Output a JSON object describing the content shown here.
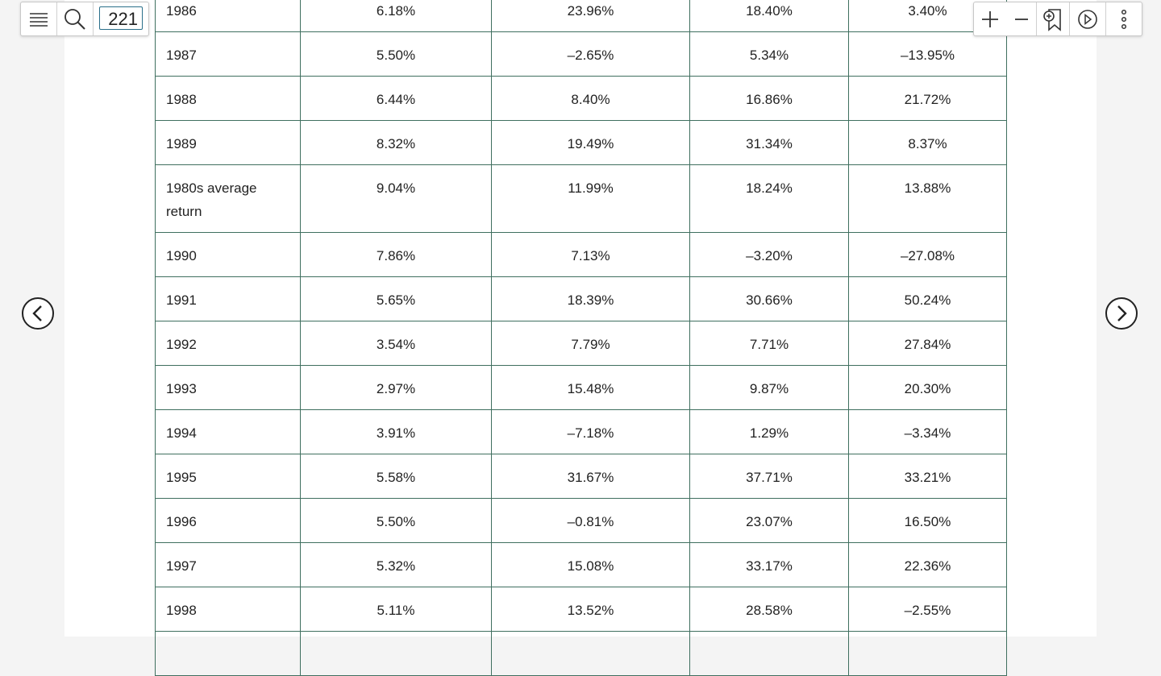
{
  "toolbar": {
    "page": "221"
  },
  "table": {
    "rows": [
      [
        "1986",
        "6.18%",
        "23.96%",
        "18.40%",
        "3.40%"
      ],
      [
        "1987",
        "5.50%",
        "–2.65%",
        "5.34%",
        "–13.95%"
      ],
      [
        "1988",
        "6.44%",
        "8.40%",
        "16.86%",
        "21.72%"
      ],
      [
        "1989",
        "8.32%",
        "19.49%",
        "31.34%",
        "8.37%"
      ],
      [
        "1980s average return",
        "9.04%",
        "11.99%",
        "18.24%",
        "13.88%"
      ],
      [
        "1990",
        "7.86%",
        "7.13%",
        "–3.20%",
        "–27.08%"
      ],
      [
        "1991",
        "5.65%",
        "18.39%",
        "30.66%",
        "50.24%"
      ],
      [
        "1992",
        "3.54%",
        "7.79%",
        "7.71%",
        "27.84%"
      ],
      [
        "1993",
        "2.97%",
        "15.48%",
        "9.87%",
        "20.30%"
      ],
      [
        "1994",
        "3.91%",
        "–7.18%",
        "1.29%",
        "–3.34%"
      ],
      [
        "1995",
        "5.58%",
        "31.67%",
        "37.71%",
        "33.21%"
      ],
      [
        "1996",
        "5.50%",
        "–0.81%",
        "23.07%",
        "16.50%"
      ],
      [
        "1997",
        "5.32%",
        "15.08%",
        "33.17%",
        "22.36%"
      ],
      [
        "1998",
        "5.11%",
        "13.52%",
        "28.58%",
        "–2.55%"
      ]
    ]
  }
}
